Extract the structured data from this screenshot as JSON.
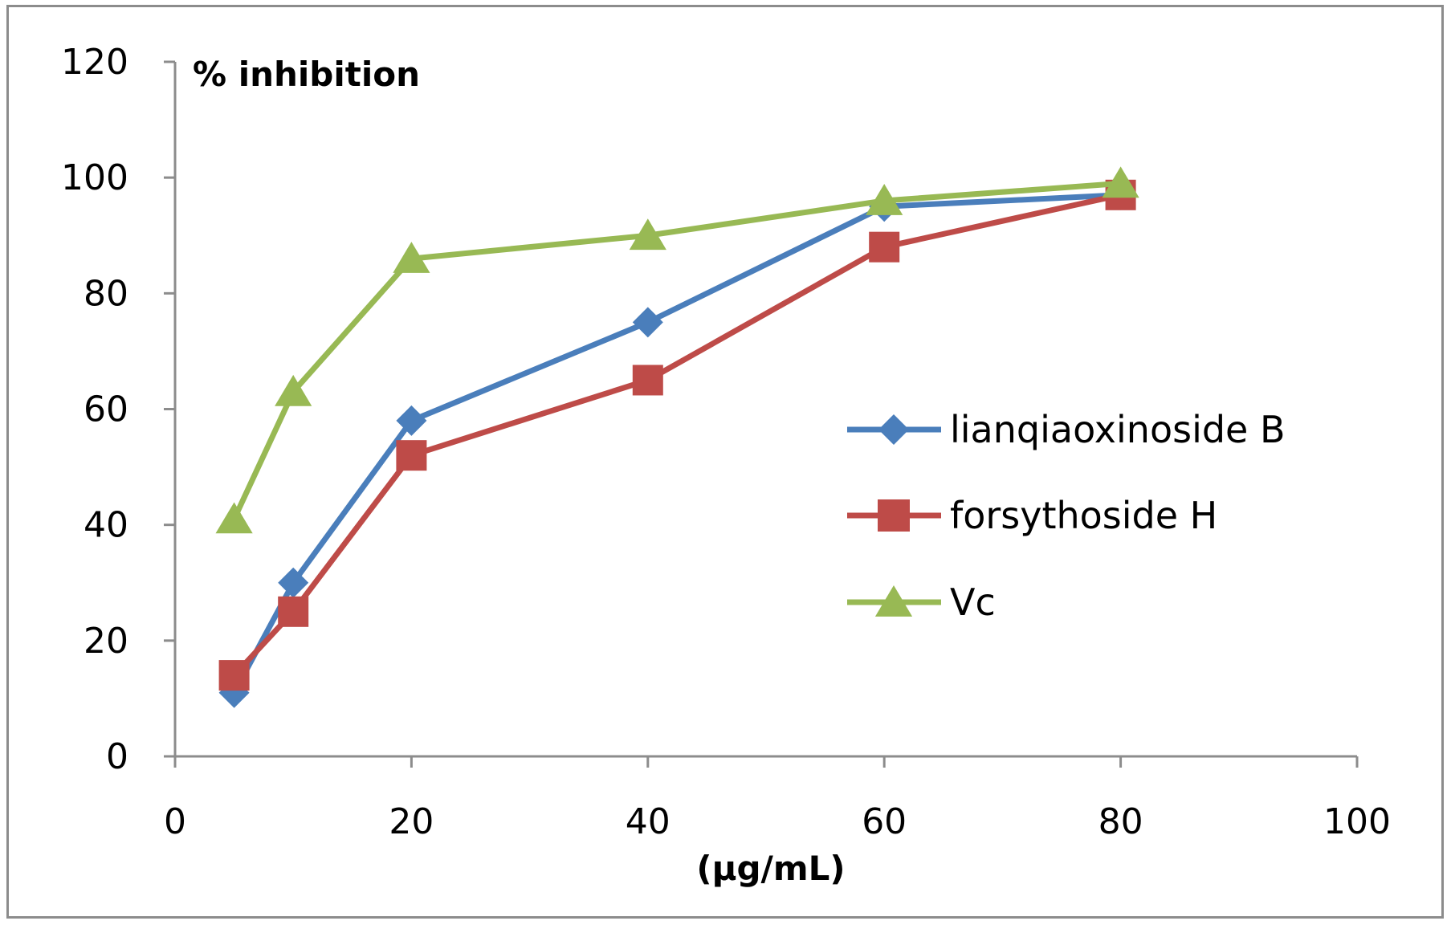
{
  "chart_data": {
    "type": "line",
    "title": "",
    "ylabel": "% inhibition",
    "xlabel": "(μg/mL)",
    "xlim": [
      0,
      100
    ],
    "ylim": [
      0,
      120
    ],
    "x_ticks": [
      0,
      20,
      40,
      60,
      80,
      100
    ],
    "y_ticks": [
      0,
      20,
      40,
      60,
      80,
      100,
      120
    ],
    "grid": false,
    "legend_position": "right",
    "x": [
      5,
      10,
      20,
      40,
      60,
      80
    ],
    "series": [
      {
        "name": "lianqiaoxinoside B",
        "marker": "diamond",
        "color": "#4a7ebb",
        "values": [
          11,
          30,
          58,
          75,
          95,
          97
        ]
      },
      {
        "name": "forsythoside H",
        "marker": "square",
        "color": "#be4b48",
        "values": [
          14,
          25,
          52,
          65,
          88,
          97
        ]
      },
      {
        "name": "Vc",
        "marker": "triangle",
        "color": "#98b954",
        "values": [
          41,
          63,
          86,
          90,
          96,
          99
        ]
      }
    ]
  }
}
